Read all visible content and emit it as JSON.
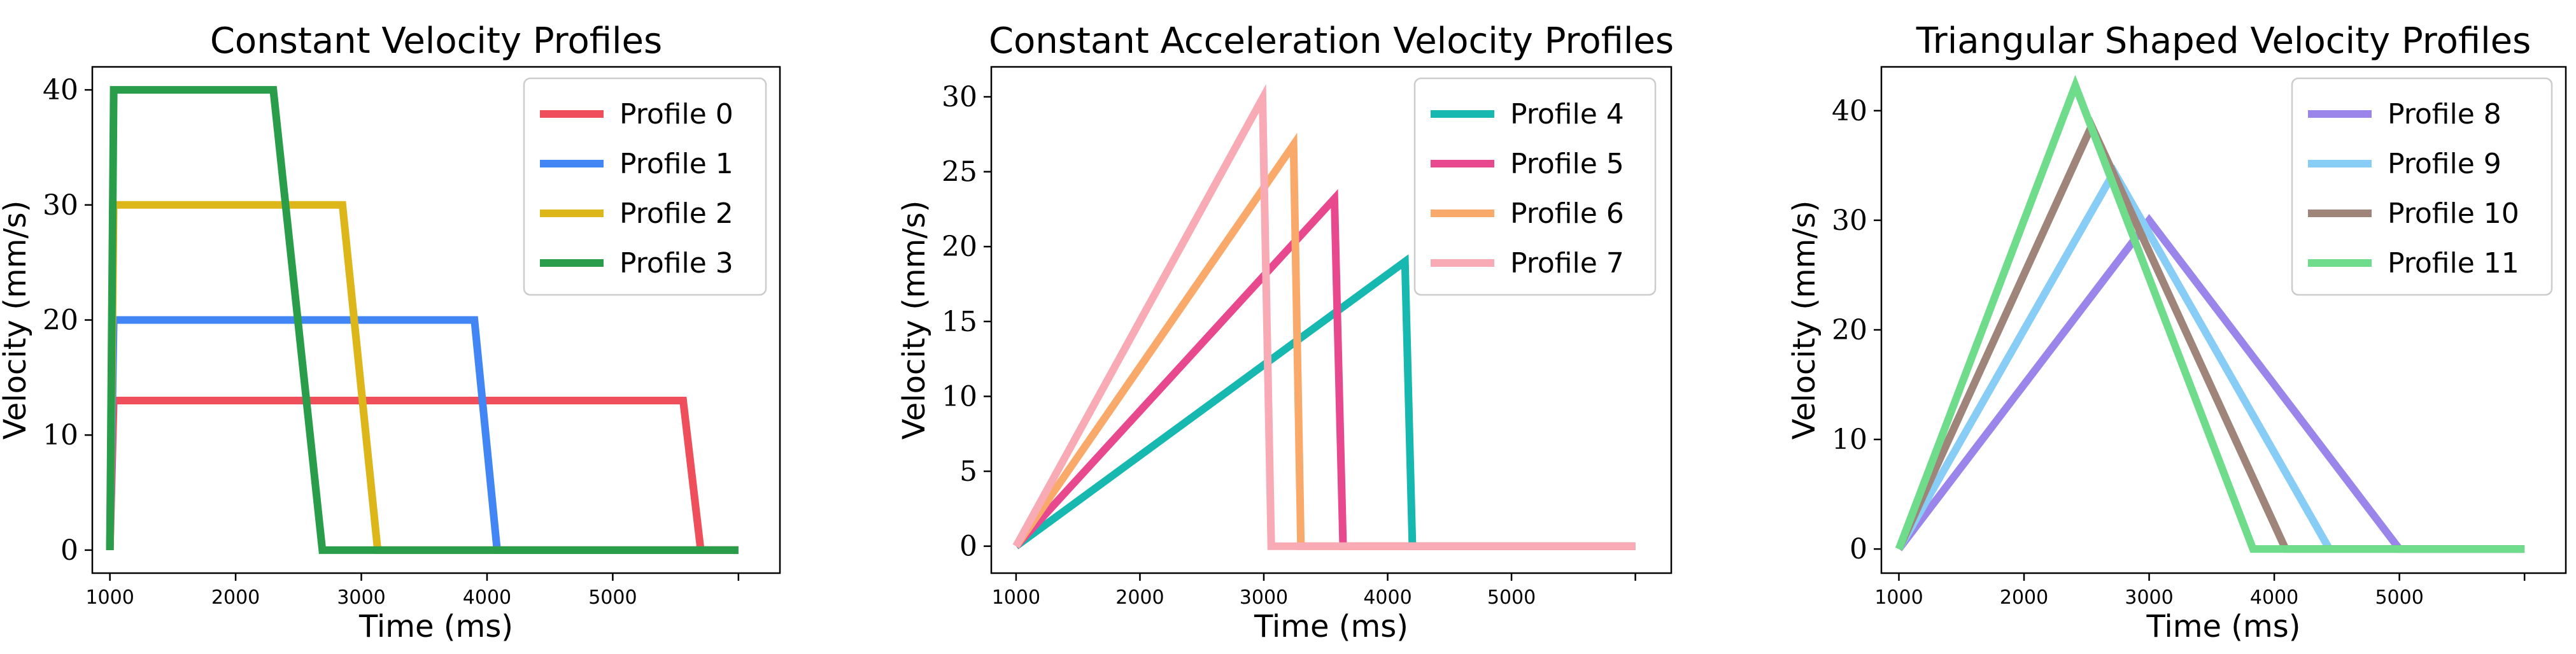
{
  "chart_data": [
    {
      "type": "line",
      "title": "Constant Velocity Profiles",
      "xlabel": "Time (ms)",
      "ylabel": "Velocity (mm/s)",
      "xlim": [
        860,
        6330
      ],
      "ylim": [
        -2,
        42
      ],
      "xticks": [
        1000,
        2000,
        3000,
        4000,
        5000,
        6000
      ],
      "xtick_labels": [
        "1000",
        "2000",
        "3000",
        "4000",
        "5000",
        ""
      ],
      "yticks": [
        0,
        10,
        20,
        30,
        40
      ],
      "ytick_labels": [
        "0",
        "10",
        "20",
        "30",
        "40"
      ],
      "legend_location": "top-right",
      "series": [
        {
          "name": "Profile 0",
          "color": "#ef4f5a",
          "x": [
            1000,
            1030,
            5560,
            5700,
            6000
          ],
          "y": [
            0,
            13,
            13,
            0,
            0
          ]
        },
        {
          "name": "Profile 1",
          "color": "#4285f4",
          "x": [
            1000,
            1030,
            3900,
            4080,
            6000
          ],
          "y": [
            0,
            20,
            20,
            0,
            0
          ]
        },
        {
          "name": "Profile 2",
          "color": "#ddb61a",
          "x": [
            1000,
            1030,
            2850,
            3130,
            6000
          ],
          "y": [
            0,
            30,
            30,
            0,
            0
          ]
        },
        {
          "name": "Profile 3",
          "color": "#2a9d4a",
          "x": [
            1000,
            1030,
            2300,
            2690,
            6000
          ],
          "y": [
            0,
            40,
            40,
            0,
            0
          ]
        }
      ]
    },
    {
      "type": "line",
      "title": "Constant Acceleration Velocity Profiles",
      "xlabel": "Time (ms)",
      "ylabel": "Velocity (mm/s)",
      "xlim": [
        800,
        6290
      ],
      "ylim": [
        -1.8,
        32
      ],
      "xticks": [
        1000,
        2000,
        3000,
        4000,
        5000,
        6000
      ],
      "xtick_labels": [
        "1000",
        "2000",
        "3000",
        "4000",
        "5000",
        ""
      ],
      "yticks": [
        0,
        5,
        10,
        15,
        20,
        25,
        30
      ],
      "ytick_labels": [
        "0",
        "5",
        "10",
        "15",
        "20",
        "25",
        "30"
      ],
      "legend_location": "top-right",
      "series": [
        {
          "name": "Profile 4",
          "color": "#17b8b0",
          "x": [
            1000,
            4140,
            4200,
            6000
          ],
          "y": [
            0,
            19,
            0,
            0
          ]
        },
        {
          "name": "Profile 5",
          "color": "#e8488e",
          "x": [
            1000,
            3570,
            3640,
            6000
          ],
          "y": [
            0,
            23.2,
            0,
            0
          ]
        },
        {
          "name": "Profile 6",
          "color": "#f9a96a",
          "x": [
            1000,
            3240,
            3300,
            6000
          ],
          "y": [
            0,
            26.8,
            0,
            0
          ]
        },
        {
          "name": "Profile 7",
          "color": "#f8aab5",
          "x": [
            1000,
            2990,
            3060,
            6000
          ],
          "y": [
            0,
            29.9,
            0,
            0
          ]
        }
      ]
    },
    {
      "type": "line",
      "title": "Triangular Shaped Velocity Profiles",
      "xlabel": "Time (ms)",
      "ylabel": "Velocity (mm/s)",
      "xlim": [
        860,
        6330
      ],
      "ylim": [
        -2.2,
        44
      ],
      "xticks": [
        1000,
        2000,
        3000,
        4000,
        5000,
        6000
      ],
      "xtick_labels": [
        "1000",
        "2000",
        "3000",
        "4000",
        "5000",
        ""
      ],
      "yticks": [
        0,
        10,
        20,
        30,
        40
      ],
      "ytick_labels": [
        "0",
        "10",
        "20",
        "30",
        "40"
      ],
      "legend_location": "top-right",
      "series": [
        {
          "name": "Profile 8",
          "color": "#9b85ea",
          "x": [
            1000,
            3000,
            5000,
            6000
          ],
          "y": [
            0,
            30,
            0,
            0
          ]
        },
        {
          "name": "Profile 9",
          "color": "#88cdf5",
          "x": [
            1000,
            2720,
            4440,
            6000
          ],
          "y": [
            0,
            34.4,
            0,
            0
          ]
        },
        {
          "name": "Profile 10",
          "color": "#9e8479",
          "x": [
            1000,
            2540,
            4090,
            6000
          ],
          "y": [
            0,
            38.6,
            0,
            0
          ]
        },
        {
          "name": "Profile 11",
          "color": "#6fdc8c",
          "x": [
            1000,
            2410,
            3830,
            6000
          ],
          "y": [
            0,
            42.3,
            0,
            0
          ]
        }
      ]
    }
  ]
}
